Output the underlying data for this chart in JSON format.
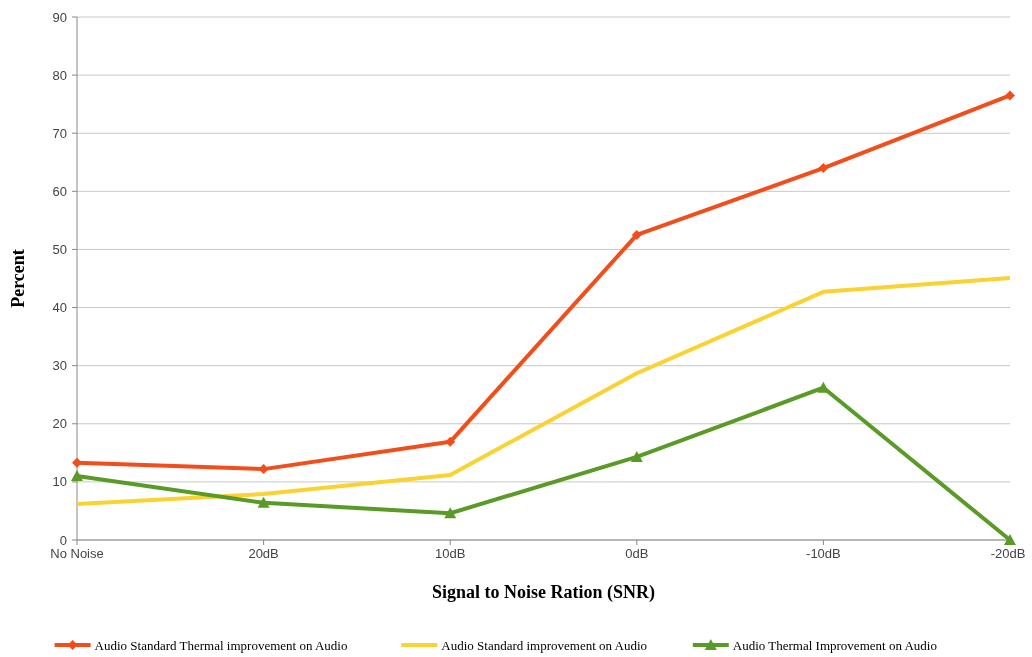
{
  "chart_data": {
    "type": "line",
    "xlabel": "Signal to Noise Ration (SNR)",
    "ylabel": "Percent",
    "categories": [
      "No Noise",
      "20dB",
      "10dB",
      "0dB",
      "-10dB",
      "-20dB"
    ],
    "series": [
      {
        "name": "Audio Standard Thermal improvement on Audio",
        "color": "#f24e1b",
        "marker": "diamond",
        "values": [
          13.3,
          12.2,
          16.9,
          52.5,
          64,
          76.5
        ]
      },
      {
        "name": "Audio Standard improvement on Audio",
        "color": "#fad232",
        "marker": "none",
        "values": [
          6.2,
          7.9,
          11.2,
          28.7,
          42.7,
          45.1
        ]
      },
      {
        "name": "Audio Thermal Improvement on Audio",
        "color": "#5a9b28",
        "marker": "triangle",
        "values": [
          11,
          6.4,
          4.6,
          14.3,
          26.2,
          0
        ]
      }
    ],
    "ylim": [
      0,
      90
    ],
    "yticks": [
      0,
      10,
      20,
      30,
      40,
      50,
      60,
      70,
      80,
      90
    ],
    "grid": "y",
    "legend": "bottom",
    "line_style": "solid"
  }
}
